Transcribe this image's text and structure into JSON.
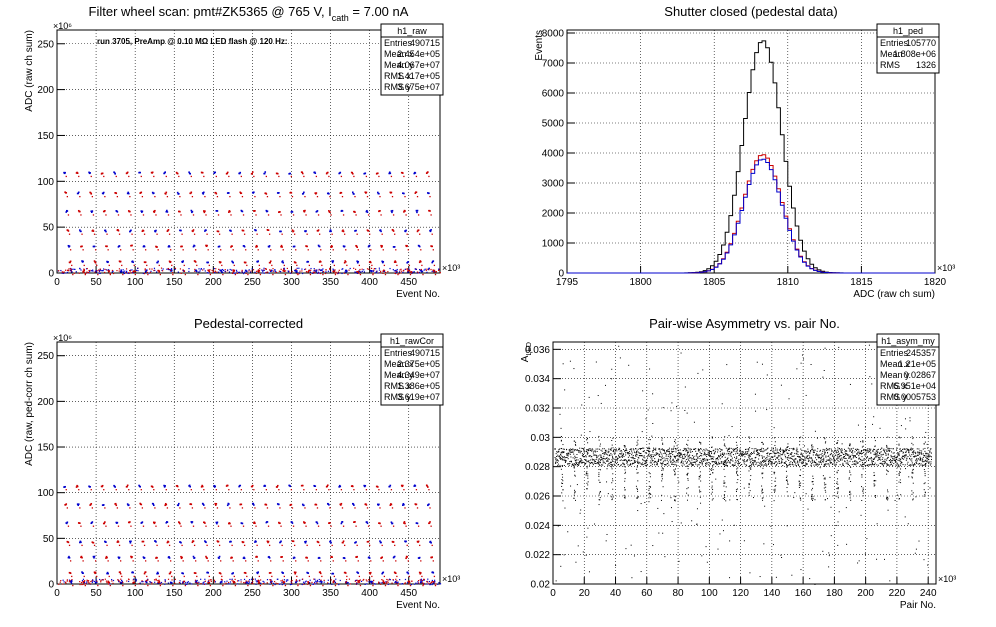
{
  "canvas_title": "",
  "chart_data": [
    {
      "id": "raw",
      "type": "scatter",
      "title": "Filter wheel scan: pmt#ZK5365 @   765 V, I",
      "title_sub": "cath",
      "title_tail": " = 7.00 nA",
      "annotation": "run 3705, PreAmp @ 0.10 MΩ LED flash @  120 Hz:",
      "xlabel": "Event No.",
      "ylabel": "ADC (raw ch sum)",
      "x_exponent": "×10³",
      "y_exponent": "×10⁶",
      "xlim": [
        0,
        490
      ],
      "ylim": [
        0,
        265
      ],
      "xticks": [
        0,
        50,
        100,
        150,
        200,
        250,
        300,
        350,
        400,
        450
      ],
      "yticks": [
        0,
        50,
        100,
        150,
        200,
        250
      ],
      "grid": true,
      "stats": {
        "name": "h1_raw",
        "rows": [
          [
            "Entries",
            "490715"
          ],
          [
            "Mean x",
            "2.454e+05"
          ],
          [
            "Mean y",
            "4.067e+07"
          ],
          [
            "RMS x",
            "1.417e+05"
          ],
          [
            "RMS y",
            "3.675e+07"
          ]
        ]
      },
      "levels": [
        110,
        88,
        68,
        47,
        30,
        13,
        3
      ],
      "period": 16,
      "colors": [
        "#0000cc",
        "#cc0000"
      ]
    },
    {
      "id": "ped",
      "type": "line",
      "title": "Shutter closed (pedestal data)",
      "xlabel": "ADC (raw ch sum)",
      "ylabel": "Events",
      "x_exponent": "×10³",
      "xlim": [
        1795,
        1820
      ],
      "ylim": [
        0,
        8100
      ],
      "xticks": [
        1795,
        1800,
        1805,
        1810,
        1815,
        1820
      ],
      "yticks": [
        0,
        1000,
        2000,
        3000,
        4000,
        5000,
        6000,
        7000,
        8000
      ],
      "grid": true,
      "stats": {
        "name": "h1_ped",
        "rows": [
          [
            "Entries",
            "105770"
          ],
          [
            "Mean",
            "1.808e+06"
          ],
          [
            "RMS",
            "1326"
          ]
        ]
      },
      "series": [
        {
          "color": "#000000",
          "mean": 1808.3,
          "sigma": 1.3,
          "peak": 7750
        },
        {
          "color": "#cc0000",
          "mean": 1808.3,
          "sigma": 1.3,
          "peak": 3950
        },
        {
          "color": "#0000cc",
          "mean": 1808.3,
          "sigma": 1.3,
          "peak": 3800
        }
      ]
    },
    {
      "id": "rawcor",
      "type": "scatter",
      "title": "Pedestal-corrected",
      "xlabel": "Event No.",
      "ylabel": "ADC (raw, ped-corr ch sum)",
      "x_exponent": "×10³",
      "y_exponent": "×10⁶",
      "xlim": [
        0,
        490
      ],
      "ylim": [
        0,
        265
      ],
      "xticks": [
        0,
        50,
        100,
        150,
        200,
        250,
        300,
        350,
        400,
        450
      ],
      "yticks": [
        0,
        50,
        100,
        150,
        200,
        250
      ],
      "grid": true,
      "stats": {
        "name": "h1_rawCor",
        "rows": [
          [
            "Entries",
            "490715"
          ],
          [
            "Mean x",
            "2.375e+05"
          ],
          [
            "Mean y",
            "4.349e+07"
          ],
          [
            "RMS x",
            "1.386e+05"
          ],
          [
            "RMS y",
            "3.619e+07"
          ]
        ]
      },
      "levels": [
        108,
        88,
        68,
        47,
        30,
        13,
        3
      ],
      "period": 16,
      "colors": [
        "#0000cc",
        "#cc0000"
      ]
    },
    {
      "id": "asym",
      "type": "scatter",
      "title": "Pair-wise Asymmetry vs. pair No.",
      "xlabel": "Pair No.",
      "ylabel": "A",
      "ylabel_sub": "LED",
      "x_exponent": "×10³",
      "xlim": [
        0,
        245
      ],
      "ylim": [
        0.02,
        0.0365
      ],
      "xticks": [
        0,
        20,
        40,
        60,
        80,
        100,
        120,
        140,
        160,
        180,
        200,
        220,
        240
      ],
      "yticks": [
        0.02,
        0.022,
        0.024,
        0.026,
        0.028,
        0.03,
        0.032,
        0.034,
        0.036
      ],
      "grid": true,
      "stats": {
        "name": "h1_asym_my",
        "rows": [
          [
            "Entries",
            "245357"
          ],
          [
            "Mean x",
            "1.21e+05"
          ],
          [
            "Mean y",
            "0.02867"
          ],
          [
            "RMS x",
            "6.951e+04"
          ],
          [
            "RMS y",
            "0.0005753"
          ]
        ]
      },
      "band_center": 0.0287,
      "band_halfwidth": 0.0006,
      "dip_period": 8
    }
  ]
}
